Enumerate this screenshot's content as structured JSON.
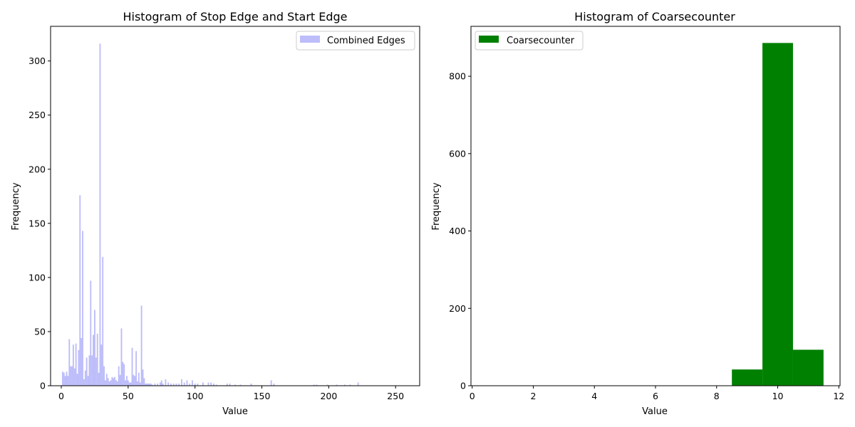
{
  "colors": {
    "combined": "#7b7bf5",
    "coarse": "#008000"
  },
  "chart_data": [
    {
      "type": "bar",
      "title": "Histogram of Stop Edge and Start Edge",
      "xlabel": "Value",
      "ylabel": "Frequency",
      "xlim": [
        -8,
        268
      ],
      "ylim": [
        0,
        332
      ],
      "xticks": [
        0,
        50,
        100,
        150,
        200,
        250
      ],
      "yticks": [
        0,
        50,
        100,
        150,
        200,
        250,
        300
      ],
      "legend": {
        "position": "top-right",
        "label": "Combined Edges"
      },
      "color": "#7b7bf5",
      "alpha": 0.5,
      "bin_width": 1,
      "series": [
        {
          "name": "Combined Edges",
          "x": [
            1,
            2,
            3,
            4,
            5,
            6,
            7,
            8,
            9,
            10,
            11,
            12,
            13,
            14,
            15,
            16,
            17,
            18,
            19,
            20,
            21,
            22,
            23,
            24,
            25,
            26,
            27,
            28,
            29,
            30,
            31,
            32,
            33,
            34,
            35,
            36,
            37,
            38,
            39,
            40,
            41,
            42,
            43,
            44,
            45,
            46,
            47,
            48,
            49,
            50,
            51,
            52,
            53,
            54,
            55,
            56,
            57,
            58,
            59,
            60,
            61,
            62,
            63,
            64,
            65,
            66,
            67,
            68,
            70,
            72,
            74,
            75,
            76,
            78,
            80,
            82,
            84,
            86,
            88,
            90,
            92,
            94,
            96,
            98,
            100,
            102,
            106,
            110,
            112,
            114,
            116,
            124,
            126,
            130,
            134,
            142,
            157,
            159,
            189,
            191,
            199,
            206,
            212,
            216,
            222
          ],
          "values": [
            13,
            12,
            9,
            13,
            9,
            43,
            18,
            18,
            38,
            16,
            39,
            11,
            33,
            176,
            44,
            143,
            6,
            14,
            26,
            9,
            28,
            97,
            28,
            47,
            70,
            26,
            48,
            12,
            316,
            38,
            119,
            18,
            5,
            11,
            7,
            4,
            5,
            8,
            7,
            8,
            5,
            4,
            18,
            10,
            53,
            22,
            20,
            5,
            9,
            5,
            3,
            3,
            35,
            10,
            9,
            32,
            4,
            12,
            3,
            74,
            15,
            7,
            2,
            2,
            2,
            2,
            2,
            1,
            2,
            2,
            3,
            5,
            2,
            6,
            3,
            2,
            2,
            2,
            2,
            6,
            3,
            5,
            2,
            5,
            2,
            2,
            3,
            3,
            3,
            2,
            1,
            2,
            2,
            1,
            1,
            2,
            5,
            2,
            1,
            1,
            1,
            1,
            1,
            1,
            3
          ]
        }
      ]
    },
    {
      "type": "bar",
      "title": "Histogram of Coarsecounter",
      "xlabel": "Value",
      "ylabel": "Frequency",
      "xlim": [
        -0.04,
        12.04
      ],
      "ylim": [
        0,
        929
      ],
      "xticks": [
        0,
        2,
        4,
        6,
        8,
        10,
        12
      ],
      "yticks": [
        0,
        200,
        400,
        600,
        800
      ],
      "legend": {
        "position": "top-left",
        "label": "Coarsecounter"
      },
      "color": "#008000",
      "series": [
        {
          "name": "Coarsecounter",
          "bins": [
            [
              8.5,
              9.5
            ],
            [
              9.5,
              10.5
            ],
            [
              10.5,
              11.5
            ]
          ],
          "values": [
            42,
            886,
            93
          ]
        }
      ]
    }
  ]
}
